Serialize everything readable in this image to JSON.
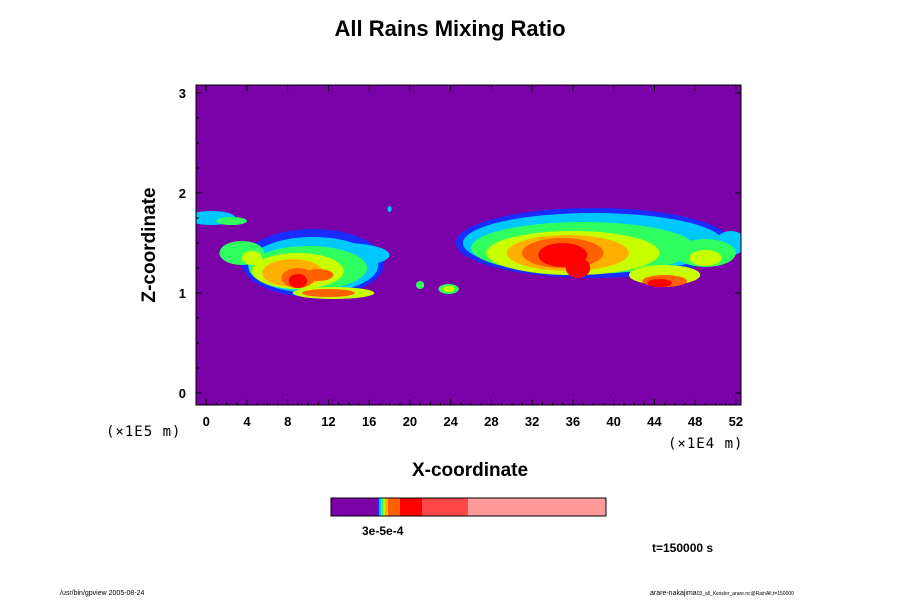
{
  "chart_data": {
    "type": "heatmap",
    "title": "All Rains Mixing Ratio",
    "xlabel": "X-coordinate",
    "ylabel": "Z-coordinate",
    "x_unit": "(×1E4 m)",
    "y_unit": "(×1E5 m)",
    "x_ticks": [
      "0",
      "4",
      "8",
      "12",
      "16",
      "20",
      "24",
      "28",
      "32",
      "36",
      "40",
      "44",
      "48",
      "52"
    ],
    "y_ticks": [
      "0",
      "1",
      "2",
      "3"
    ],
    "xlim": [
      -1,
      52.5
    ],
    "ylim": [
      -0.12,
      3.08
    ],
    "colorbar": {
      "colors": [
        "#7a00a8",
        "#1a2cff",
        "#00c8ff",
        "#30ff60",
        "#c8ff00",
        "#ffb000",
        "#ff6000",
        "#ff0000",
        "#ff4848",
        "#ff9a9a"
      ],
      "label": "3e-5e-4"
    },
    "features": [
      {
        "x": 0.5,
        "z": 1.75,
        "rx": 2.4,
        "rz": 0.07,
        "level": 2
      },
      {
        "x": 2.5,
        "z": 1.72,
        "rx": 1.5,
        "rz": 0.04,
        "level": 3
      },
      {
        "x": 10.5,
        "z": 1.3,
        "rx": 7.0,
        "rz": 0.34,
        "level": 1
      },
      {
        "x": 10.5,
        "z": 1.28,
        "rx": 6.4,
        "rz": 0.28,
        "level": 2
      },
      {
        "x": 10.0,
        "z": 1.25,
        "rx": 5.8,
        "rz": 0.22,
        "level": 3
      },
      {
        "x": 9.0,
        "z": 1.22,
        "rx": 4.5,
        "rz": 0.18,
        "level": 4
      },
      {
        "x": 8.5,
        "z": 1.2,
        "rx": 3.0,
        "rz": 0.14,
        "level": 5
      },
      {
        "x": 9.0,
        "z": 1.15,
        "rx": 1.6,
        "rz": 0.1,
        "level": 6
      },
      {
        "x": 9.0,
        "z": 1.12,
        "rx": 0.9,
        "rz": 0.07,
        "level": 7
      },
      {
        "x": 11.0,
        "z": 1.18,
        "rx": 1.5,
        "rz": 0.06,
        "level": 6
      },
      {
        "x": 12.5,
        "z": 1.0,
        "rx": 4.0,
        "rz": 0.06,
        "level": 4
      },
      {
        "x": 12.0,
        "z": 1.0,
        "rx": 2.6,
        "rz": 0.04,
        "level": 6
      },
      {
        "x": 13.5,
        "z": 1.38,
        "rx": 4.5,
        "rz": 0.12,
        "level": 2
      },
      {
        "x": 3.5,
        "z": 1.4,
        "rx": 2.2,
        "rz": 0.12,
        "level": 3
      },
      {
        "x": 4.5,
        "z": 1.35,
        "rx": 1.0,
        "rz": 0.07,
        "level": 4
      },
      {
        "x": 18.0,
        "z": 1.84,
        "rx": 0.2,
        "rz": 0.03,
        "level": 2
      },
      {
        "x": 21.0,
        "z": 1.08,
        "rx": 0.4,
        "rz": 0.04,
        "level": 3
      },
      {
        "x": 23.8,
        "z": 1.04,
        "rx": 1.0,
        "rz": 0.05,
        "level": 3
      },
      {
        "x": 23.8,
        "z": 1.04,
        "rx": 0.6,
        "rz": 0.03,
        "level": 4
      },
      {
        "x": 38.0,
        "z": 1.5,
        "rx": 13.5,
        "rz": 0.35,
        "level": 1
      },
      {
        "x": 38.0,
        "z": 1.5,
        "rx": 12.8,
        "rz": 0.3,
        "level": 2
      },
      {
        "x": 37.0,
        "z": 1.45,
        "rx": 11.0,
        "rz": 0.26,
        "level": 3
      },
      {
        "x": 36.0,
        "z": 1.4,
        "rx": 8.5,
        "rz": 0.22,
        "level": 4
      },
      {
        "x": 35.5,
        "z": 1.4,
        "rx": 6.0,
        "rz": 0.18,
        "level": 5
      },
      {
        "x": 35.0,
        "z": 1.4,
        "rx": 4.0,
        "rz": 0.15,
        "level": 6
      },
      {
        "x": 35.0,
        "z": 1.38,
        "rx": 2.4,
        "rz": 0.12,
        "level": 7
      },
      {
        "x": 36.5,
        "z": 1.25,
        "rx": 1.2,
        "rz": 0.1,
        "level": 7
      },
      {
        "x": 45.0,
        "z": 1.18,
        "rx": 3.5,
        "rz": 0.1,
        "level": 4
      },
      {
        "x": 45.0,
        "z": 1.12,
        "rx": 2.2,
        "rz": 0.06,
        "level": 6
      },
      {
        "x": 44.5,
        "z": 1.1,
        "rx": 1.2,
        "rz": 0.04,
        "level": 7
      },
      {
        "x": 49.0,
        "z": 1.4,
        "rx": 3.0,
        "rz": 0.14,
        "level": 3
      },
      {
        "x": 49.0,
        "z": 1.35,
        "rx": 1.6,
        "rz": 0.08,
        "level": 4
      },
      {
        "x": 51.5,
        "z": 1.5,
        "rx": 1.5,
        "rz": 0.12,
        "level": 2
      }
    ]
  },
  "labels": {
    "time": "t=150000 s",
    "footer_left": "/usr/bin/gpview 2005-08-24",
    "footer_right_main": "arare-nakajima",
    "footer_right_small": "03_all_Kessler_arare.nc@RainAll,t=150000"
  }
}
